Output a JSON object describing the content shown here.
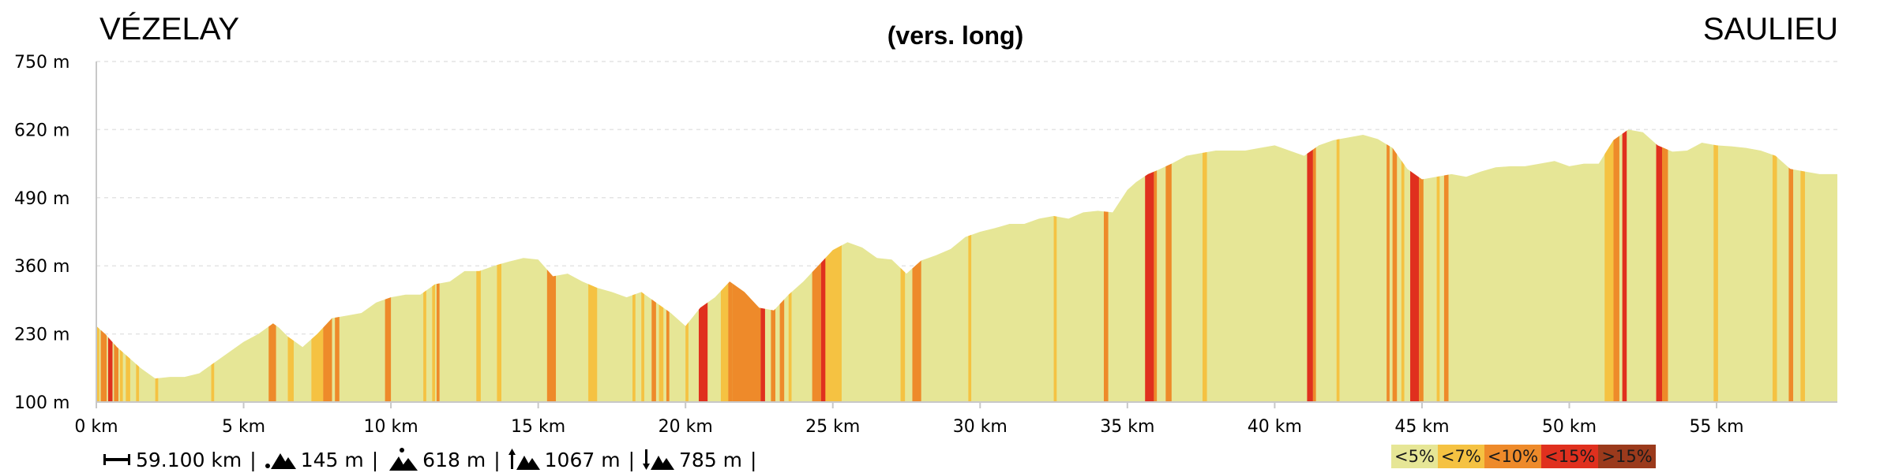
{
  "chart_data": {
    "type": "area",
    "title_left": "VÉZELAY",
    "title_center": "(vers. long)",
    "title_right": "SAULIEU",
    "x_unit": "km",
    "y_unit": "m",
    "xlim": [
      0,
      59.1
    ],
    "ylim": [
      100,
      750
    ],
    "y_ticks": [
      100,
      230,
      360,
      490,
      620,
      750
    ],
    "y_tick_labels": [
      "100 m",
      "230 m",
      "360 m",
      "490 m",
      "620 m",
      "750 m"
    ],
    "x_ticks": [
      0,
      5,
      10,
      15,
      20,
      25,
      30,
      35,
      40,
      45,
      50,
      55
    ],
    "x_tick_labels": [
      "0 km",
      "5 km",
      "10 km",
      "15 km",
      "20 km",
      "25 km",
      "30 km",
      "35 km",
      "40 km",
      "45 km",
      "50 km",
      "55 km"
    ],
    "grid": true,
    "elevation_profile": {
      "x": [
        0,
        0.3,
        0.7,
        1.0,
        1.5,
        2.0,
        2.5,
        3.0,
        3.5,
        4.0,
        4.5,
        5.0,
        5.5,
        6.0,
        6.2,
        6.5,
        7.0,
        7.5,
        8.0,
        8.5,
        9.0,
        9.5,
        10.0,
        10.5,
        11.0,
        11.5,
        12.0,
        12.5,
        13.0,
        13.5,
        14.0,
        14.5,
        15.0,
        15.5,
        16.0,
        16.5,
        17.0,
        17.5,
        18.0,
        18.5,
        19.0,
        19.5,
        20.0,
        20.5,
        21.0,
        21.5,
        22.0,
        22.5,
        23.0,
        23.5,
        24.0,
        24.5,
        25.0,
        25.5,
        26.0,
        26.5,
        27.0,
        27.5,
        28.0,
        28.5,
        29.0,
        29.5,
        30.0,
        30.5,
        31.0,
        31.5,
        32.0,
        32.5,
        33.0,
        33.5,
        34.0,
        34.5,
        35.0,
        35.3,
        35.7,
        36.0,
        36.5,
        37.0,
        37.5,
        38.0,
        38.5,
        39.0,
        39.5,
        40.0,
        40.5,
        41.0,
        41.5,
        42.0,
        42.5,
        43.0,
        43.5,
        44.0,
        44.5,
        45.0,
        45.5,
        46.0,
        46.5,
        47.0,
        47.5,
        48.0,
        48.5,
        49.0,
        49.5,
        50.0,
        50.5,
        51.0,
        51.5,
        52.0,
        52.5,
        53.0,
        53.5,
        54.0,
        54.5,
        55.0,
        55.5,
        56.0,
        56.5,
        57.0,
        57.5,
        58.0,
        58.5,
        59.1
      ],
      "y": [
        245,
        230,
        205,
        190,
        165,
        145,
        148,
        148,
        155,
        175,
        195,
        215,
        230,
        250,
        242,
        225,
        205,
        230,
        260,
        265,
        270,
        290,
        300,
        305,
        305,
        325,
        330,
        350,
        350,
        360,
        368,
        375,
        372,
        340,
        345,
        330,
        318,
        310,
        300,
        310,
        290,
        270,
        245,
        280,
        300,
        330,
        310,
        280,
        275,
        305,
        330,
        360,
        390,
        405,
        395,
        375,
        372,
        345,
        370,
        380,
        392,
        415,
        425,
        432,
        440,
        440,
        450,
        455,
        450,
        462,
        465,
        462,
        505,
        520,
        535,
        542,
        555,
        570,
        575,
        580,
        580,
        580,
        585,
        590,
        580,
        570,
        590,
        600,
        605,
        610,
        602,
        585,
        545,
        525,
        530,
        535,
        530,
        540,
        548,
        550,
        550,
        555,
        560,
        550,
        555,
        555,
        600,
        620,
        615,
        590,
        578,
        580,
        595,
        590,
        588,
        585,
        580,
        570,
        545,
        540,
        535,
        535
      ]
    },
    "gradient_bands": [
      {
        "from": 0.0,
        "to": 0.1,
        "class": 1
      },
      {
        "from": 0.15,
        "to": 0.35,
        "class": 2
      },
      {
        "from": 0.4,
        "to": 0.55,
        "class": 3
      },
      {
        "from": 0.6,
        "to": 0.75,
        "class": 2
      },
      {
        "from": 0.8,
        "to": 0.9,
        "class": 1
      },
      {
        "from": 1.0,
        "to": 1.15,
        "class": 1
      },
      {
        "from": 1.35,
        "to": 1.45,
        "class": 1
      },
      {
        "from": 2.0,
        "to": 2.1,
        "class": 1
      },
      {
        "from": 3.9,
        "to": 4.0,
        "class": 1
      },
      {
        "from": 5.85,
        "to": 6.1,
        "class": 2
      },
      {
        "from": 6.5,
        "to": 6.7,
        "class": 1
      },
      {
        "from": 7.3,
        "to": 7.7,
        "class": 1
      },
      {
        "from": 7.7,
        "to": 8.0,
        "class": 2
      },
      {
        "from": 8.1,
        "to": 8.25,
        "class": 2
      },
      {
        "from": 9.8,
        "to": 10.0,
        "class": 2
      },
      {
        "from": 11.1,
        "to": 11.2,
        "class": 1
      },
      {
        "from": 11.4,
        "to": 11.5,
        "class": 1
      },
      {
        "from": 11.55,
        "to": 11.65,
        "class": 2
      },
      {
        "from": 12.9,
        "to": 13.05,
        "class": 1
      },
      {
        "from": 13.6,
        "to": 13.75,
        "class": 1
      },
      {
        "from": 15.3,
        "to": 15.6,
        "class": 2
      },
      {
        "from": 16.7,
        "to": 17.0,
        "class": 1
      },
      {
        "from": 18.2,
        "to": 18.3,
        "class": 1
      },
      {
        "from": 18.5,
        "to": 18.6,
        "class": 1
      },
      {
        "from": 18.85,
        "to": 19.0,
        "class": 2
      },
      {
        "from": 19.1,
        "to": 19.25,
        "class": 1
      },
      {
        "from": 19.35,
        "to": 19.45,
        "class": 2
      },
      {
        "from": 20.0,
        "to": 20.1,
        "class": 1
      },
      {
        "from": 20.45,
        "to": 20.75,
        "class": 3
      },
      {
        "from": 21.2,
        "to": 21.45,
        "class": 1
      },
      {
        "from": 21.45,
        "to": 21.6,
        "class": 2
      },
      {
        "from": 21.6,
        "to": 22.3,
        "class": 2
      },
      {
        "from": 22.3,
        "to": 22.55,
        "class": 2
      },
      {
        "from": 22.55,
        "to": 22.7,
        "class": 3
      },
      {
        "from": 22.9,
        "to": 23.05,
        "class": 2
      },
      {
        "from": 23.2,
        "to": 23.35,
        "class": 2
      },
      {
        "from": 23.5,
        "to": 23.6,
        "class": 1
      },
      {
        "from": 24.3,
        "to": 24.6,
        "class": 2
      },
      {
        "from": 24.6,
        "to": 24.75,
        "class": 3
      },
      {
        "from": 24.75,
        "to": 25.3,
        "class": 1
      },
      {
        "from": 27.3,
        "to": 27.45,
        "class": 1
      },
      {
        "from": 27.7,
        "to": 28.0,
        "class": 2
      },
      {
        "from": 29.6,
        "to": 29.7,
        "class": 1
      },
      {
        "from": 32.5,
        "to": 32.6,
        "class": 1
      },
      {
        "from": 34.2,
        "to": 34.35,
        "class": 2
      },
      {
        "from": 35.6,
        "to": 35.9,
        "class": 3
      },
      {
        "from": 35.9,
        "to": 36.0,
        "class": 2
      },
      {
        "from": 36.3,
        "to": 36.5,
        "class": 2
      },
      {
        "from": 37.55,
        "to": 37.7,
        "class": 1
      },
      {
        "from": 41.1,
        "to": 41.3,
        "class": 3
      },
      {
        "from": 41.3,
        "to": 41.4,
        "class": 2
      },
      {
        "from": 42.1,
        "to": 42.2,
        "class": 1
      },
      {
        "from": 43.8,
        "to": 43.9,
        "class": 2
      },
      {
        "from": 44.0,
        "to": 44.15,
        "class": 2
      },
      {
        "from": 44.3,
        "to": 44.4,
        "class": 1
      },
      {
        "from": 44.6,
        "to": 44.9,
        "class": 3
      },
      {
        "from": 44.9,
        "to": 45.05,
        "class": 2
      },
      {
        "from": 45.5,
        "to": 45.6,
        "class": 1
      },
      {
        "from": 45.75,
        "to": 45.9,
        "class": 2
      },
      {
        "from": 51.2,
        "to": 51.5,
        "class": 1
      },
      {
        "from": 51.5,
        "to": 51.7,
        "class": 2
      },
      {
        "from": 51.8,
        "to": 51.95,
        "class": 3
      },
      {
        "from": 52.95,
        "to": 53.15,
        "class": 3
      },
      {
        "from": 53.15,
        "to": 53.35,
        "class": 2
      },
      {
        "from": 54.9,
        "to": 55.05,
        "class": 1
      },
      {
        "from": 56.9,
        "to": 57.05,
        "class": 1
      },
      {
        "from": 57.45,
        "to": 57.6,
        "class": 2
      },
      {
        "from": 57.85,
        "to": 58.0,
        "class": 1
      }
    ],
    "legend": [
      {
        "label": "<5%",
        "color": "#e6e696"
      },
      {
        "label": "<7%",
        "color": "#f5c242"
      },
      {
        "label": "<10%",
        "color": "#ee8a2a"
      },
      {
        "label": "<15%",
        "color": "#e0301e"
      },
      {
        "label": ">15%",
        "color": "#9b3a1c"
      }
    ],
    "legend_placement": "bottom-right"
  },
  "stats": {
    "distance": "59.100 km",
    "min_altitude": "145 m",
    "max_altitude": "618 m",
    "ascent": "1067 m",
    "descent": "785 m",
    "separator": "|"
  },
  "colors": {
    "fill": "#e6e696",
    "axis": "#c8c8c8",
    "grid": "#e4e4e4"
  }
}
